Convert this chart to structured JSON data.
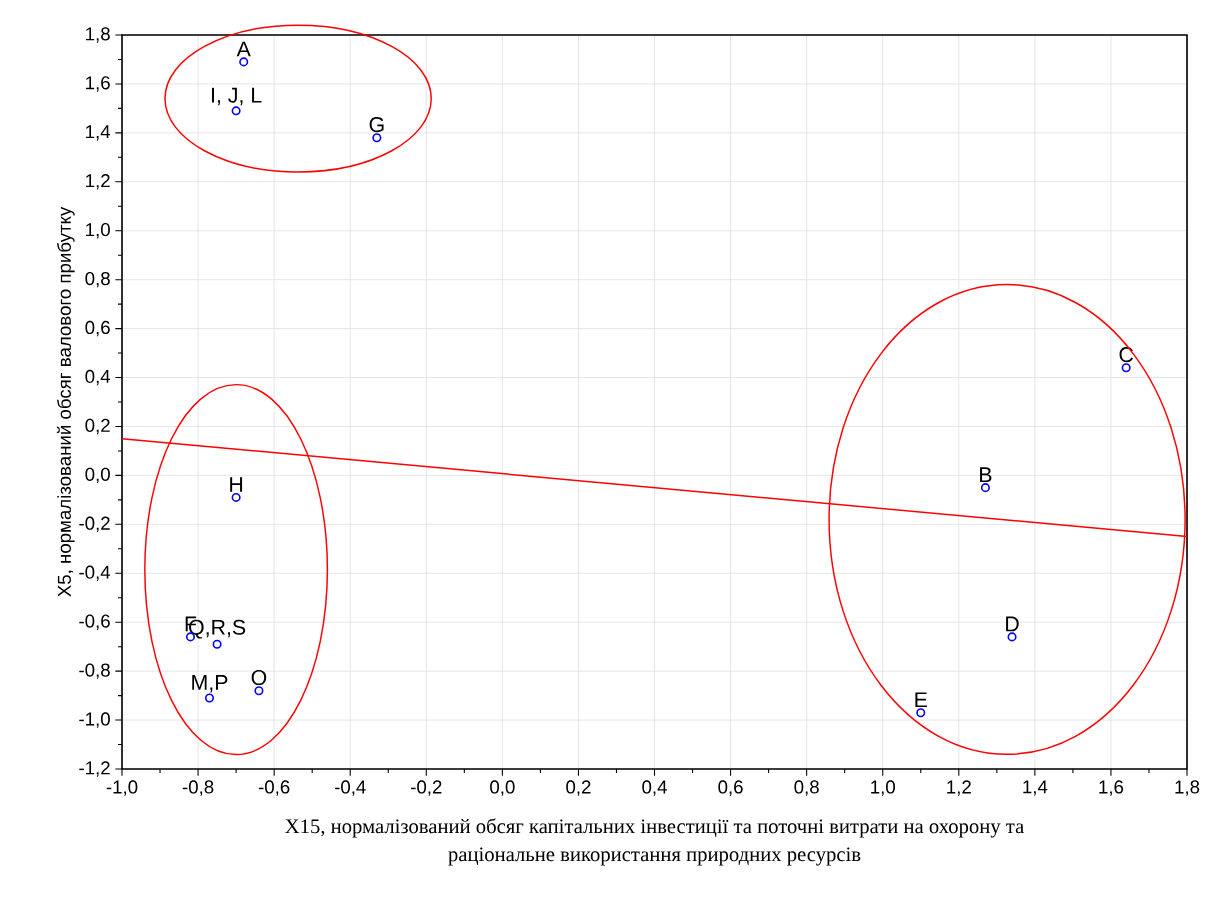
{
  "chart_data": {
    "type": "scatter",
    "xlabel": "X15, нормалізований обсяг капітальних інвестиції та поточні витрати на охорону та раціональне використання природних ресурсів",
    "ylabel": "X5, нормалізований обсяг валового прибутку",
    "series": [
      {
        "color": "#0000ff",
        "marker": "circle",
        "x": [
          -0.68,
          -0.7,
          -0.33,
          -0.7,
          -0.82,
          -0.75,
          -0.77,
          -0.64,
          1.64,
          1.27,
          1.34,
          1.1
        ],
        "values": [
          1.69,
          1.49,
          1.38,
          -0.09,
          -0.66,
          -0.69,
          -0.91,
          -0.88,
          0.44,
          -0.05,
          -0.66,
          -0.97
        ]
      },
      {
        "type": "line",
        "color": "#ff0000",
        "x": [
          -1.0,
          1.8
        ],
        "values": [
          0.15,
          -0.25
        ]
      }
    ],
    "annotations": [
      {
        "text": "A",
        "x": -0.68,
        "y": 1.69
      },
      {
        "text": "I, J, L",
        "x": -0.7,
        "y": 1.49
      },
      {
        "text": "G",
        "x": -0.33,
        "y": 1.38
      },
      {
        "text": "H",
        "x": -0.7,
        "y": -0.09
      },
      {
        "text": "F",
        "x": -0.82,
        "y": -0.66
      },
      {
        "text": "Q,R,S",
        "x": -0.75,
        "y": -0.69
      },
      {
        "text": "M,P",
        "x": -0.77,
        "y": -0.91
      },
      {
        "text": "O",
        "x": -0.64,
        "y": -0.88
      },
      {
        "text": "C",
        "x": 1.64,
        "y": 0.44
      },
      {
        "text": "B",
        "x": 1.27,
        "y": -0.05
      },
      {
        "text": "D",
        "x": 1.34,
        "y": -0.66
      },
      {
        "text": "E",
        "x": 1.1,
        "y": -0.97
      }
    ],
    "xlim": [
      -1.0,
      1.8
    ],
    "ylim": [
      -1.2,
      1.8
    ],
    "xticks": [
      {
        "value": -1.0,
        "label": "-1,0"
      },
      {
        "value": -0.8,
        "label": "-0,8"
      },
      {
        "value": -0.6,
        "label": "-0,6"
      },
      {
        "value": -0.4,
        "label": "-0,4"
      },
      {
        "value": -0.2,
        "label": "-0,2"
      },
      {
        "value": 0.0,
        "label": "0,0"
      },
      {
        "value": 0.2,
        "label": "0,2"
      },
      {
        "value": 0.4,
        "label": "0,4"
      },
      {
        "value": 0.6,
        "label": "0,6"
      },
      {
        "value": 0.8,
        "label": "0,8"
      },
      {
        "value": 1.0,
        "label": "1,0"
      },
      {
        "value": 1.2,
        "label": "1,2"
      },
      {
        "value": 1.4,
        "label": "1,4"
      },
      {
        "value": 1.6,
        "label": "1,6"
      },
      {
        "value": 1.8,
        "label": "1,8"
      }
    ],
    "yticks": [
      {
        "value": -1.2,
        "label": "-1,2"
      },
      {
        "value": -1.0,
        "label": "-1,0"
      },
      {
        "value": -0.8,
        "label": "-0,8"
      },
      {
        "value": -0.6,
        "label": "-0,6"
      },
      {
        "value": -0.4,
        "label": "-0,4"
      },
      {
        "value": -0.2,
        "label": "-0,2"
      },
      {
        "value": 0.0,
        "label": "0,0"
      },
      {
        "value": 0.2,
        "label": "0,2"
      },
      {
        "value": 0.4,
        "label": "0,4"
      },
      {
        "value": 0.6,
        "label": "0,6"
      },
      {
        "value": 0.8,
        "label": "0,8"
      },
      {
        "value": 1.0,
        "label": "1,0"
      },
      {
        "value": 1.2,
        "label": "1,2"
      },
      {
        "value": 1.4,
        "label": "1,4"
      },
      {
        "value": 1.6,
        "label": "1,6"
      },
      {
        "value": 1.8,
        "label": "1,8"
      }
    ],
    "grid": true
  }
}
